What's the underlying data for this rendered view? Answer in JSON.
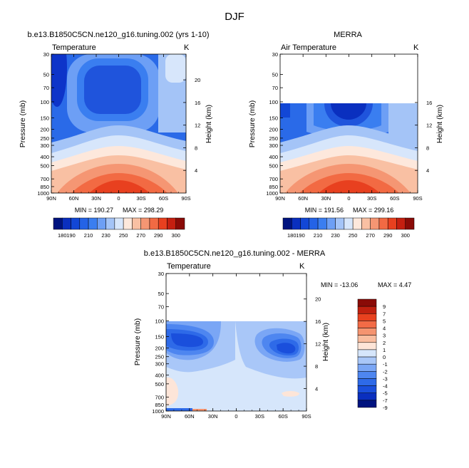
{
  "figure_title": "DJF",
  "chart_data": [
    {
      "type": "heatmap",
      "title": "b.e13.B1850C5CN.ne120_g16.tuning.002 (yrs 1-10)",
      "left_label": "Temperature",
      "right_label": "K",
      "ylabel": "Pressure (mb)",
      "ylabel2": "Height (km)",
      "xticks": [
        "90N",
        "60N",
        "30N",
        "0",
        "30S",
        "60S",
        "90S"
      ],
      "yticks": [
        "30",
        "50",
        "70",
        "100",
        "150",
        "200",
        "250",
        "300",
        "400",
        "500",
        "700",
        "850",
        "1000"
      ],
      "yticks2": [
        "20",
        "16",
        "12",
        "8",
        "4"
      ],
      "min_label": "MIN = 190.27",
      "max_label": "MAX = 298.29",
      "colorbar_labels": [
        "180",
        "190",
        "210",
        "230",
        "250",
        "270",
        "290",
        "300"
      ],
      "levels": [
        180,
        190,
        200,
        210,
        220,
        230,
        240,
        250,
        260,
        270,
        280,
        290,
        300
      ]
    },
    {
      "type": "heatmap",
      "title": "MERRA",
      "left_label": "Air Temperature",
      "right_label": "K",
      "ylabel": "Pressure (mb)",
      "ylabel2": "Height (km)",
      "xticks": [
        "90N",
        "60N",
        "30N",
        "0",
        "30S",
        "60S",
        "90S"
      ],
      "yticks": [
        "30",
        "50",
        "70",
        "100",
        "150",
        "200",
        "250",
        "300",
        "400",
        "500",
        "700",
        "850",
        "1000"
      ],
      "yticks2": [
        "16",
        "12",
        "8",
        "4"
      ],
      "min_label": "MIN = 191.56",
      "max_label": "MAX = 299.16",
      "colorbar_labels": [
        "180",
        "190",
        "210",
        "230",
        "250",
        "270",
        "290",
        "300"
      ],
      "levels": [
        180,
        190,
        200,
        210,
        220,
        230,
        240,
        250,
        260,
        270,
        280,
        290,
        300
      ]
    },
    {
      "type": "heatmap",
      "title": "b.e13.B1850C5CN.ne120_g16.tuning.002 - MERRA",
      "left_label": "Temperature",
      "right_label": "K",
      "ylabel": "Pressure (mb)",
      "ylabel2": "Height (km)",
      "xticks": [
        "90N",
        "60N",
        "30N",
        "0",
        "30S",
        "60S",
        "90S"
      ],
      "yticks": [
        "30",
        "50",
        "70",
        "100",
        "150",
        "200",
        "250",
        "300",
        "400",
        "500",
        "700",
        "850",
        "1000"
      ],
      "yticks2": [
        "20",
        "16",
        "12",
        "8",
        "4"
      ],
      "min_label": "MIN = -13.06",
      "max_label": "MAX =   4.47",
      "colorbar_labels": [
        "9",
        "7",
        "5",
        "4",
        "3",
        "2",
        "1",
        "0",
        "-1",
        "-2",
        "-3",
        "-4",
        "-5",
        "-7",
        "-9"
      ],
      "levels": [
        -9,
        -7,
        -5,
        -4,
        -3,
        -2,
        -1,
        0,
        1,
        2,
        3,
        4,
        5,
        7,
        9
      ]
    }
  ],
  "palette": {
    "temperature": [
      "#00137f",
      "#0a2fbf",
      "#1247d6",
      "#2463e6",
      "#3a7ef0",
      "#6d9ff5",
      "#a4c4f7",
      "#d7e6fb",
      "#fde8dc",
      "#f9c0a3",
      "#f59673",
      "#f26a43",
      "#e8401f",
      "#c51f10",
      "#8a0b07"
    ],
    "difference": [
      "#00137f",
      "#0a2fbf",
      "#1a4fdc",
      "#2e6ae8",
      "#4e86f0",
      "#7aa6f5",
      "#a9c7f8",
      "#d6e6fb",
      "#fde5d8",
      "#f9bd9f",
      "#f59470",
      "#f26b46",
      "#e8411f",
      "#c0200f",
      "#8a0b07"
    ]
  }
}
